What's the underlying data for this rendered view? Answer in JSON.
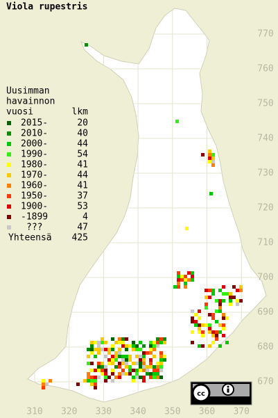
{
  "title": "Viola rupestris",
  "legend": {
    "heading": [
      "Uusimman",
      "havainnon",
      "vuosi"
    ],
    "count_heading": "lkm",
    "rows": [
      {
        "label": "2015-",
        "count": 20,
        "color": "#006400"
      },
      {
        "label": "2010-",
        "count": 40,
        "color": "#009000"
      },
      {
        "label": "2000-",
        "count": 44,
        "color": "#00c800"
      },
      {
        "label": "1990-",
        "count": 54,
        "color": "#33ee11"
      },
      {
        "label": "1980-",
        "count": 41,
        "color": "#ffff00"
      },
      {
        "label": "1970-",
        "count": 44,
        "color": "#ffc800"
      },
      {
        "label": "1960-",
        "count": 41,
        "color": "#ff8000"
      },
      {
        "label": "1950-",
        "count": 37,
        "color": "#ff3c00"
      },
      {
        "label": "1900-",
        "count": 53,
        "color": "#dd0000"
      },
      {
        "label": "-1899",
        "count": 4,
        "color": "#800000"
      },
      {
        "label": "???",
        "count": 47,
        "color": "#c8c8c8"
      }
    ],
    "total_label": "Yhteensä",
    "total": 425
  },
  "map": {
    "xticks": [
      310,
      320,
      330,
      340,
      350,
      360,
      370
    ],
    "yticks": [
      670,
      680,
      690,
      700,
      710,
      720,
      730,
      740,
      750,
      760,
      770
    ]
  }
}
